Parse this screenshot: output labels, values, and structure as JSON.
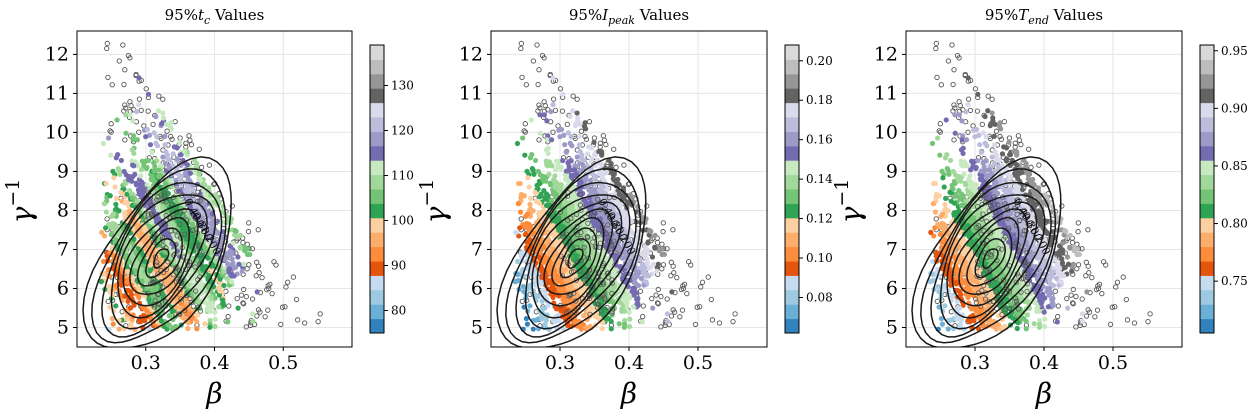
{
  "chart_data": [
    {
      "type": "scatter",
      "title_prefix": "95%",
      "title_var": "t",
      "title_sub": "c",
      "title_suffix": " Values",
      "xlabel": "β",
      "ylabel_base": "γ",
      "ylabel_sup": "−1",
      "xlim": [
        0.2,
        0.6
      ],
      "ylim": [
        4.5,
        12.6
      ],
      "xticks": [
        "0.3",
        "0.4",
        "0.5"
      ],
      "yticks": [
        "5",
        "6",
        "7",
        "8",
        "9",
        "10",
        "11",
        "12"
      ],
      "colorbar": {
        "min": 75,
        "max": 139,
        "ticks": [
          "80",
          "90",
          "100",
          "110",
          "120",
          "130"
        ]
      },
      "grid": true,
      "colormap": "tab20c",
      "gradient": "tc",
      "contour_labels": [
        "0.400",
        "0.800",
        "1.200"
      ]
    },
    {
      "type": "scatter",
      "title_prefix": "95%",
      "title_var": "I",
      "title_sub": "peak",
      "title_suffix": " Values",
      "xlabel": "β",
      "ylabel_base": "γ",
      "ylabel_sup": "−1",
      "xlim": [
        0.2,
        0.6
      ],
      "ylim": [
        4.5,
        12.6
      ],
      "xticks": [
        "0.3",
        "0.4",
        "0.5"
      ],
      "yticks": [
        "5",
        "6",
        "7",
        "8",
        "9",
        "10",
        "11",
        "12"
      ],
      "colorbar": {
        "min": 0.062,
        "max": 0.208,
        "ticks": [
          "0.08",
          "0.10",
          "0.12",
          "0.14",
          "0.16",
          "0.18",
          "0.20"
        ]
      },
      "grid": true,
      "colormap": "tab20c",
      "gradient": "bands",
      "contour_labels": [
        "0.400",
        "0.800",
        "1.200"
      ]
    },
    {
      "type": "scatter",
      "title_prefix": "95%",
      "title_var": "T",
      "title_sub": "end",
      "title_suffix": " Values",
      "xlabel": "β",
      "ylabel_base": "γ",
      "ylabel_sup": "−1",
      "xlim": [
        0.2,
        0.6
      ],
      "ylim": [
        4.5,
        12.6
      ],
      "xticks": [
        "0.3",
        "0.4",
        "0.5"
      ],
      "yticks": [
        "5",
        "6",
        "7",
        "8",
        "9",
        "10",
        "11",
        "12"
      ],
      "colorbar": {
        "min": 0.705,
        "max": 0.955,
        "ticks": [
          "0.75",
          "0.80",
          "0.85",
          "0.90",
          "0.95"
        ]
      },
      "grid": true,
      "colormap": "tab20c",
      "gradient": "bands",
      "contour_labels": [
        "0.400",
        "0.800",
        "1.200"
      ]
    }
  ],
  "colors": {
    "tab20c": [
      "#3182bd",
      "#6baed6",
      "#9ecae1",
      "#c6dbef",
      "#e6550d",
      "#fd8d3c",
      "#fdae6b",
      "#fdd0a2",
      "#31a354",
      "#74c476",
      "#a1d99b",
      "#c7e9c0",
      "#756bb1",
      "#9e9ac8",
      "#bcbddc",
      "#dadaeb",
      "#636363",
      "#969696",
      "#bdbdbd",
      "#d9d9d9"
    ],
    "contour": "#1a1a1a",
    "outlier_edge": "#555555",
    "grid": "#e6e6e6"
  }
}
